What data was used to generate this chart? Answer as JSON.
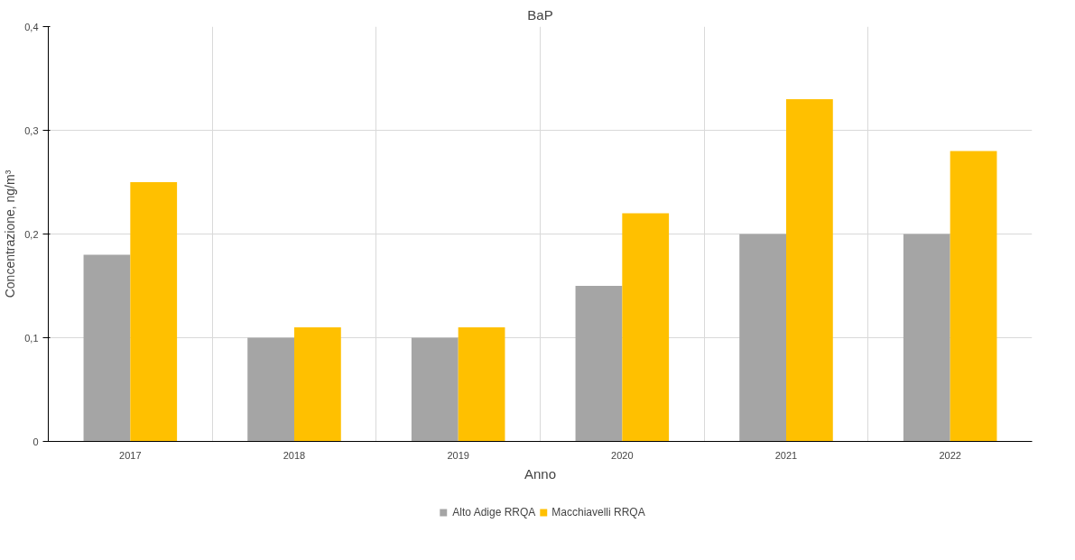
{
  "chart_data": {
    "type": "bar",
    "title": "BaP",
    "xlabel": "Anno",
    "ylabel": "Concentrazione, ng/m³",
    "categories": [
      "2017",
      "2018",
      "2019",
      "2020",
      "2021",
      "2022"
    ],
    "series": [
      {
        "name": "Alto Adige RRQA",
        "color": "#a5a5a5",
        "values": [
          0.18,
          0.1,
          0.1,
          0.15,
          0.2,
          0.2
        ]
      },
      {
        "name": "Macchiavelli RRQA",
        "color": "#ffc000",
        "values": [
          0.25,
          0.11,
          0.11,
          0.22,
          0.33,
          0.28
        ]
      }
    ],
    "ylim": [
      0,
      0.4
    ],
    "yticks": [
      {
        "value": 0,
        "label": "0"
      },
      {
        "value": 0.1,
        "label": "0,1"
      },
      {
        "value": 0.2,
        "label": "0,2"
      },
      {
        "value": 0.3,
        "label": "0,3"
      },
      {
        "value": 0.4,
        "label": "0,4"
      }
    ],
    "grid": true,
    "legend": "bottom"
  }
}
